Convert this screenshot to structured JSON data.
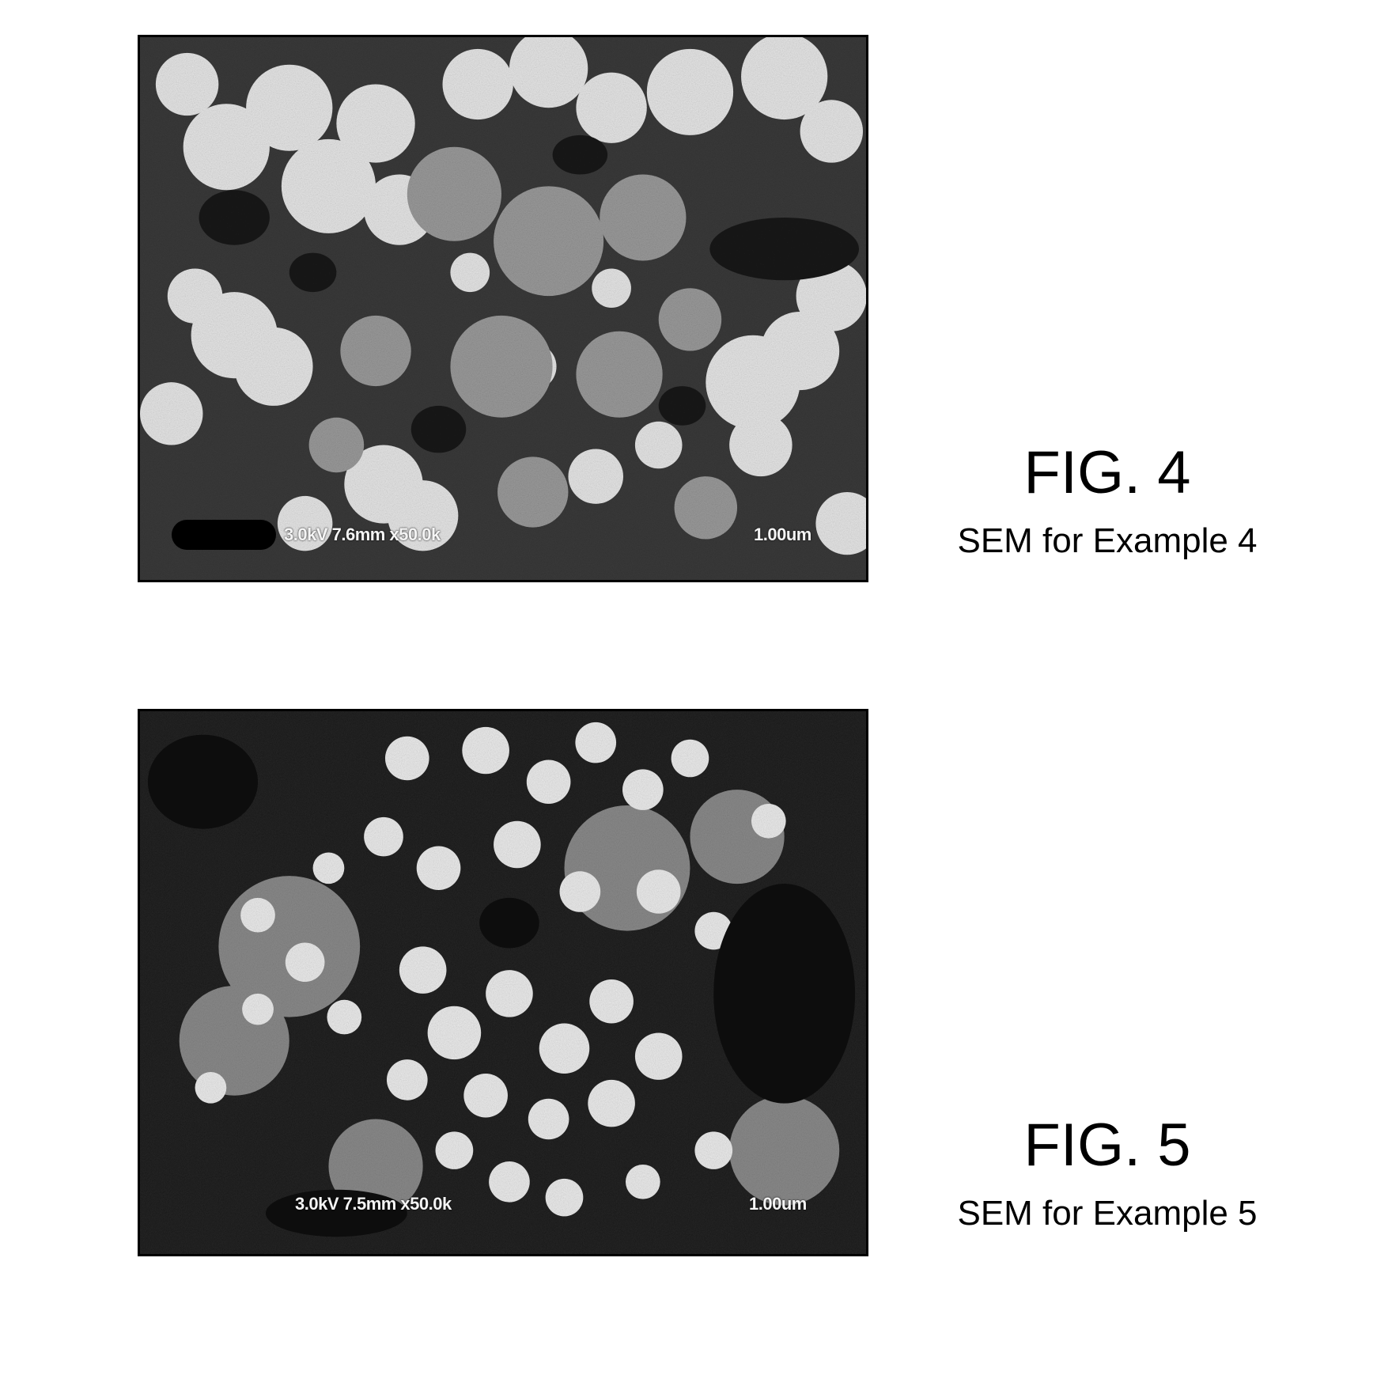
{
  "figures": [
    {
      "label": "FIG. 4",
      "caption": "SEM for Example 4",
      "image_icon": "sem-micrograph",
      "overlay_left": "3.0kV 7.6mm x50.0k",
      "overlay_right": "1.00um"
    },
    {
      "label": "FIG. 5",
      "caption": "SEM for Example 5",
      "image_icon": "sem-micrograph",
      "overlay_left": "3.0kV 7.5mm x50.0k",
      "overlay_right": "1.00um"
    }
  ],
  "colors": {
    "background": "#ffffff",
    "text": "#000000",
    "frame": "#000000"
  }
}
